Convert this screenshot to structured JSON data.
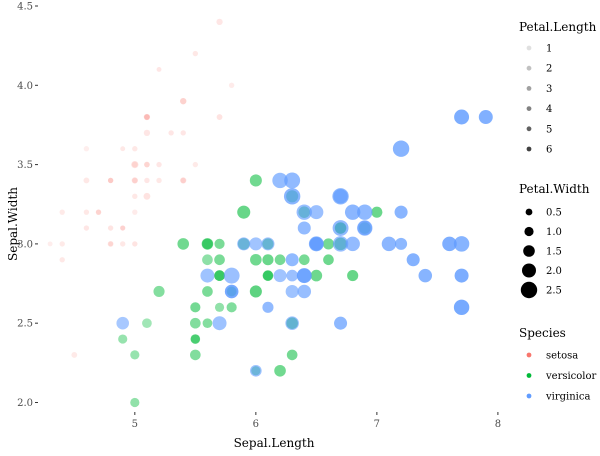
{
  "chart_data": {
    "type": "scatter",
    "xlabel": "Sepal.Length",
    "ylabel": "Sepal.Width",
    "xlim": [
      4.2,
      8.1
    ],
    "ylim": [
      1.94,
      4.5
    ],
    "x_ticks": [
      {
        "v": 5,
        "label": "5"
      },
      {
        "v": 6,
        "label": "6"
      },
      {
        "v": 7,
        "label": "7"
      },
      {
        "v": 8,
        "label": "8"
      }
    ],
    "y_ticks": [
      {
        "v": 2.0,
        "label": "2.0"
      },
      {
        "v": 2.5,
        "label": "2.5"
      },
      {
        "v": 3.0,
        "label": "3.0"
      },
      {
        "v": 3.5,
        "label": "3.5"
      },
      {
        "v": 4.0,
        "label": "4.0"
      },
      {
        "v": 4.5,
        "label": "4.5"
      }
    ],
    "grid": false,
    "alpha_legend": {
      "title": "Petal.Length",
      "entries": [
        {
          "v": 1,
          "label": "1"
        },
        {
          "v": 2,
          "label": "2"
        },
        {
          "v": 3,
          "label": "3"
        },
        {
          "v": 4,
          "label": "4"
        },
        {
          "v": 5,
          "label": "5"
        },
        {
          "v": 6,
          "label": "6"
        }
      ]
    },
    "size_legend": {
      "title": "Petal.Width",
      "entries": [
        {
          "v": 0.5,
          "label": "0.5"
        },
        {
          "v": 1.0,
          "label": "1.0"
        },
        {
          "v": 1.5,
          "label": "1.5"
        },
        {
          "v": 2.0,
          "label": "2.0"
        },
        {
          "v": 2.5,
          "label": "2.5"
        }
      ]
    },
    "color_legend": {
      "title": "Species",
      "entries": [
        {
          "name": "setosa",
          "color": "#F8766D"
        },
        {
          "name": "versicolor",
          "color": "#00BA38"
        },
        {
          "name": "virginica",
          "color": "#619CFF"
        }
      ]
    },
    "series": [
      {
        "name": "setosa",
        "color": "#F8766D",
        "points": [
          [
            5.1,
            3.5,
            1.4,
            0.2
          ],
          [
            4.9,
            3.0,
            1.4,
            0.2
          ],
          [
            4.7,
            3.2,
            1.3,
            0.2
          ],
          [
            4.6,
            3.1,
            1.5,
            0.2
          ],
          [
            5.0,
            3.6,
            1.4,
            0.2
          ],
          [
            5.4,
            3.9,
            1.7,
            0.4
          ],
          [
            4.6,
            3.4,
            1.4,
            0.3
          ],
          [
            5.0,
            3.4,
            1.5,
            0.2
          ],
          [
            4.4,
            2.9,
            1.4,
            0.2
          ],
          [
            4.9,
            3.1,
            1.5,
            0.1
          ],
          [
            5.4,
            3.7,
            1.5,
            0.2
          ],
          [
            4.8,
            3.4,
            1.6,
            0.2
          ],
          [
            4.8,
            3.0,
            1.4,
            0.1
          ],
          [
            4.3,
            3.0,
            1.1,
            0.1
          ],
          [
            5.8,
            4.0,
            1.2,
            0.2
          ],
          [
            5.7,
            4.4,
            1.5,
            0.4
          ],
          [
            5.4,
            3.9,
            1.3,
            0.4
          ],
          [
            5.1,
            3.5,
            1.4,
            0.3
          ],
          [
            5.7,
            3.8,
            1.7,
            0.3
          ],
          [
            5.1,
            3.8,
            1.5,
            0.3
          ],
          [
            5.4,
            3.4,
            1.7,
            0.2
          ],
          [
            5.1,
            3.7,
            1.5,
            0.4
          ],
          [
            4.6,
            3.6,
            1.0,
            0.2
          ],
          [
            5.1,
            3.3,
            1.7,
            0.5
          ],
          [
            4.8,
            3.4,
            1.9,
            0.2
          ],
          [
            5.0,
            3.0,
            1.6,
            0.2
          ],
          [
            5.0,
            3.4,
            1.6,
            0.4
          ],
          [
            5.2,
            3.5,
            1.5,
            0.2
          ],
          [
            5.2,
            3.4,
            1.4,
            0.2
          ],
          [
            4.7,
            3.2,
            1.6,
            0.2
          ],
          [
            4.8,
            3.1,
            1.6,
            0.2
          ],
          [
            5.4,
            3.4,
            1.5,
            0.4
          ],
          [
            5.2,
            4.1,
            1.5,
            0.1
          ],
          [
            5.5,
            4.2,
            1.4,
            0.2
          ],
          [
            4.9,
            3.1,
            1.5,
            0.2
          ],
          [
            5.0,
            3.2,
            1.2,
            0.2
          ],
          [
            5.5,
            3.5,
            1.3,
            0.2
          ],
          [
            4.9,
            3.6,
            1.4,
            0.1
          ],
          [
            4.4,
            3.0,
            1.3,
            0.2
          ],
          [
            5.1,
            3.4,
            1.5,
            0.2
          ],
          [
            5.0,
            3.5,
            1.3,
            0.3
          ],
          [
            4.5,
            2.3,
            1.3,
            0.3
          ],
          [
            4.4,
            3.2,
            1.3,
            0.2
          ],
          [
            5.0,
            3.5,
            1.6,
            0.6
          ],
          [
            5.1,
            3.8,
            1.9,
            0.4
          ],
          [
            4.8,
            3.0,
            1.4,
            0.3
          ],
          [
            5.1,
            3.8,
            1.6,
            0.2
          ],
          [
            4.6,
            3.2,
            1.4,
            0.2
          ],
          [
            5.3,
            3.7,
            1.5,
            0.2
          ],
          [
            5.0,
            3.3,
            1.4,
            0.2
          ]
        ]
      },
      {
        "name": "versicolor",
        "color": "#00BA38",
        "points": [
          [
            7.0,
            3.2,
            4.7,
            1.4
          ],
          [
            6.4,
            3.2,
            4.5,
            1.5
          ],
          [
            6.9,
            3.1,
            4.9,
            1.5
          ],
          [
            5.5,
            2.3,
            4.0,
            1.3
          ],
          [
            6.5,
            2.8,
            4.6,
            1.5
          ],
          [
            5.7,
            2.8,
            4.5,
            1.3
          ],
          [
            6.3,
            3.3,
            4.7,
            1.6
          ],
          [
            4.9,
            2.4,
            3.3,
            1.0
          ],
          [
            6.6,
            2.9,
            4.6,
            1.3
          ],
          [
            5.2,
            2.7,
            3.9,
            1.4
          ],
          [
            5.0,
            2.0,
            3.5,
            1.0
          ],
          [
            5.9,
            3.0,
            4.2,
            1.5
          ],
          [
            6.0,
            2.2,
            4.0,
            1.0
          ],
          [
            6.1,
            2.9,
            4.7,
            1.4
          ],
          [
            5.6,
            2.9,
            3.6,
            1.3
          ],
          [
            6.7,
            3.1,
            4.4,
            1.4
          ],
          [
            5.6,
            3.0,
            4.5,
            1.5
          ],
          [
            5.8,
            2.7,
            4.1,
            1.0
          ],
          [
            6.2,
            2.2,
            4.5,
            1.5
          ],
          [
            5.6,
            2.5,
            3.9,
            1.1
          ],
          [
            5.9,
            3.2,
            4.8,
            1.8
          ],
          [
            6.1,
            2.8,
            4.0,
            1.3
          ],
          [
            6.3,
            2.5,
            4.9,
            1.5
          ],
          [
            6.1,
            2.8,
            4.7,
            1.2
          ],
          [
            6.4,
            2.9,
            4.3,
            1.3
          ],
          [
            6.6,
            3.0,
            4.4,
            1.4
          ],
          [
            6.8,
            2.8,
            4.8,
            1.4
          ],
          [
            6.7,
            3.0,
            5.0,
            1.7
          ],
          [
            6.0,
            2.9,
            4.5,
            1.5
          ],
          [
            5.7,
            2.6,
            3.5,
            1.0
          ],
          [
            5.5,
            2.4,
            3.8,
            1.1
          ],
          [
            5.5,
            2.4,
            3.7,
            1.0
          ],
          [
            5.8,
            2.7,
            3.9,
            1.2
          ],
          [
            6.0,
            2.7,
            5.1,
            1.6
          ],
          [
            5.4,
            3.0,
            4.5,
            1.5
          ],
          [
            6.0,
            3.4,
            4.5,
            1.6
          ],
          [
            6.7,
            3.1,
            4.7,
            1.5
          ],
          [
            6.3,
            2.3,
            4.4,
            1.3
          ],
          [
            5.6,
            3.0,
            4.1,
            1.3
          ],
          [
            5.5,
            2.5,
            4.0,
            1.3
          ],
          [
            5.5,
            2.6,
            4.4,
            1.2
          ],
          [
            6.1,
            3.0,
            4.6,
            1.4
          ],
          [
            5.8,
            2.6,
            4.0,
            1.2
          ],
          [
            5.0,
            2.3,
            3.3,
            1.0
          ],
          [
            5.6,
            2.7,
            4.2,
            1.3
          ],
          [
            5.7,
            3.0,
            4.2,
            1.2
          ],
          [
            5.7,
            2.9,
            4.2,
            1.3
          ],
          [
            6.2,
            2.9,
            4.3,
            1.3
          ],
          [
            5.1,
            2.5,
            3.0,
            1.1
          ],
          [
            5.7,
            2.8,
            4.1,
            1.3
          ]
        ]
      },
      {
        "name": "virginica",
        "color": "#619CFF",
        "points": [
          [
            6.3,
            3.3,
            6.0,
            2.5
          ],
          [
            5.8,
            2.7,
            5.1,
            1.9
          ],
          [
            7.1,
            3.0,
            5.9,
            2.1
          ],
          [
            6.3,
            2.9,
            5.6,
            1.8
          ],
          [
            6.5,
            3.0,
            5.8,
            2.2
          ],
          [
            7.6,
            3.0,
            6.6,
            2.1
          ],
          [
            4.9,
            2.5,
            4.5,
            1.7
          ],
          [
            7.3,
            2.9,
            6.3,
            1.8
          ],
          [
            6.7,
            2.5,
            5.8,
            1.8
          ],
          [
            7.2,
            3.6,
            6.1,
            2.5
          ],
          [
            6.5,
            3.2,
            5.1,
            2.0
          ],
          [
            6.4,
            2.7,
            5.3,
            1.9
          ],
          [
            6.8,
            3.0,
            5.5,
            2.1
          ],
          [
            5.7,
            2.5,
            5.0,
            2.0
          ],
          [
            5.8,
            2.8,
            5.1,
            2.4
          ],
          [
            6.4,
            3.2,
            5.3,
            2.3
          ],
          [
            6.5,
            3.0,
            5.5,
            1.8
          ],
          [
            7.7,
            3.8,
            6.7,
            2.2
          ],
          [
            7.7,
            2.6,
            6.9,
            2.3
          ],
          [
            6.0,
            2.2,
            5.0,
            1.5
          ],
          [
            6.9,
            3.2,
            5.7,
            2.3
          ],
          [
            5.6,
            2.8,
            4.9,
            2.0
          ],
          [
            7.7,
            2.8,
            6.7,
            2.0
          ],
          [
            6.3,
            2.7,
            4.9,
            1.8
          ],
          [
            6.7,
            3.3,
            5.7,
            2.1
          ],
          [
            7.2,
            3.2,
            6.0,
            1.8
          ],
          [
            6.2,
            2.8,
            4.8,
            1.8
          ],
          [
            6.1,
            3.0,
            4.9,
            1.8
          ],
          [
            6.4,
            2.8,
            5.6,
            2.1
          ],
          [
            7.2,
            3.0,
            5.8,
            1.6
          ],
          [
            7.4,
            2.8,
            6.1,
            1.9
          ],
          [
            7.9,
            3.8,
            6.4,
            2.0
          ],
          [
            6.4,
            2.8,
            5.6,
            2.2
          ],
          [
            6.3,
            2.8,
            5.1,
            1.5
          ],
          [
            6.1,
            2.6,
            5.6,
            1.4
          ],
          [
            7.7,
            3.0,
            6.1,
            2.3
          ],
          [
            6.3,
            3.4,
            5.6,
            2.4
          ],
          [
            6.4,
            3.1,
            5.5,
            1.8
          ],
          [
            6.0,
            3.0,
            4.8,
            1.8
          ],
          [
            6.9,
            3.1,
            5.4,
            2.1
          ],
          [
            6.7,
            3.1,
            5.6,
            2.4
          ],
          [
            6.9,
            3.1,
            5.1,
            2.3
          ],
          [
            5.8,
            2.7,
            5.1,
            1.9
          ],
          [
            6.8,
            3.2,
            5.9,
            2.3
          ],
          [
            6.7,
            3.3,
            5.7,
            2.5
          ],
          [
            6.7,
            3.0,
            5.2,
            2.3
          ],
          [
            6.3,
            2.5,
            5.0,
            1.9
          ],
          [
            6.5,
            3.0,
            5.2,
            2.0
          ],
          [
            6.2,
            3.4,
            5.4,
            2.3
          ],
          [
            5.9,
            3.0,
            5.1,
            1.8
          ]
        ]
      }
    ]
  }
}
